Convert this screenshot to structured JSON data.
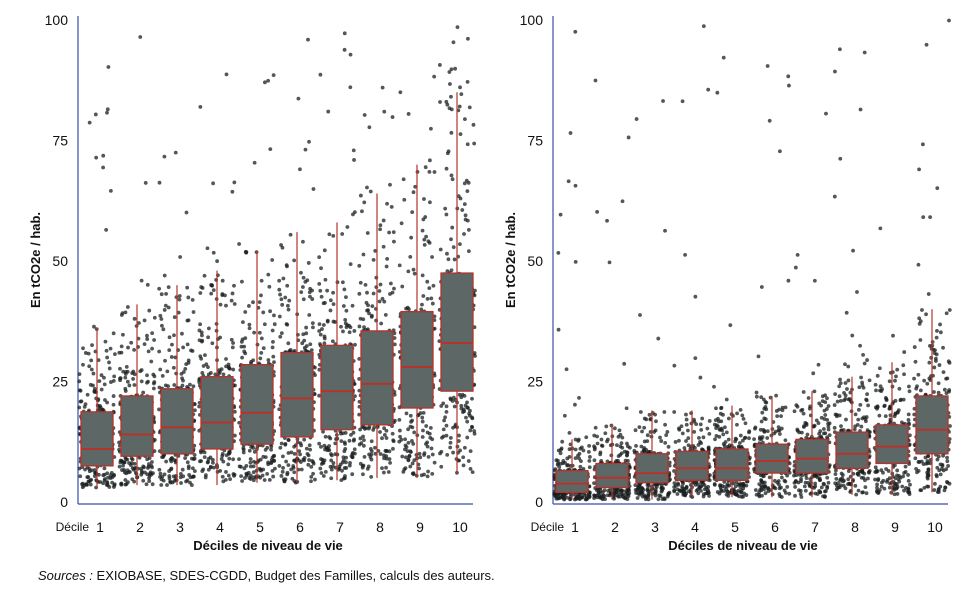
{
  "chart_data": [
    {
      "type": "box",
      "title": "",
      "xlabel": "Déciles de niveau de vie",
      "ylabel": "En tCO2e / hab.",
      "xprefix": "Décile",
      "ylim": [
        0,
        100
      ],
      "yticks": [
        0,
        25,
        50,
        75,
        100
      ],
      "categories": [
        "1",
        "2",
        "3",
        "4",
        "5",
        "6",
        "7",
        "8",
        "9",
        "10"
      ],
      "boxes": [
        {
          "lo": 3,
          "q1": 7.5,
          "med": 11,
          "q3": 18.7,
          "hi": 36
        },
        {
          "lo": 3.5,
          "q1": 9.5,
          "med": 14,
          "q3": 22,
          "hi": 41
        },
        {
          "lo": 3.5,
          "q1": 10,
          "med": 15.5,
          "q3": 23.5,
          "hi": 45
        },
        {
          "lo": 3.5,
          "q1": 11,
          "med": 16.5,
          "q3": 26,
          "hi": 48
        },
        {
          "lo": 4,
          "q1": 12,
          "med": 18.5,
          "q3": 28.5,
          "hi": 52
        },
        {
          "lo": 4,
          "q1": 13.5,
          "med": 21.5,
          "q3": 31,
          "hi": 56
        },
        {
          "lo": 4.5,
          "q1": 15,
          "med": 23,
          "q3": 32.5,
          "hi": 58
        },
        {
          "lo": 5,
          "q1": 16,
          "med": 24.5,
          "q3": 35.5,
          "hi": 64
        },
        {
          "lo": 5,
          "q1": 19.5,
          "med": 28,
          "q3": 39.5,
          "hi": 70
        },
        {
          "lo": 6,
          "q1": 23,
          "med": 33,
          "q3": 47.5,
          "hi": 85
        }
      ]
    },
    {
      "type": "box",
      "title": "",
      "xlabel": "Déciles de niveau de vie",
      "ylabel": "En tCO2e / hab.",
      "xprefix": "Décile",
      "ylim": [
        0,
        100
      ],
      "yticks": [
        0,
        25,
        50,
        75,
        100
      ],
      "categories": [
        "1",
        "2",
        "3",
        "4",
        "5",
        "6",
        "7",
        "8",
        "9",
        "10"
      ],
      "boxes": [
        {
          "lo": 0.5,
          "q1": 2,
          "med": 3.8,
          "q3": 6.5,
          "hi": 13
        },
        {
          "lo": 0.5,
          "q1": 3,
          "med": 5,
          "q3": 8,
          "hi": 16
        },
        {
          "lo": 0.5,
          "q1": 4,
          "med": 6,
          "q3": 10,
          "hi": 19
        },
        {
          "lo": 1,
          "q1": 4.5,
          "med": 7,
          "q3": 10.5,
          "hi": 19
        },
        {
          "lo": 1,
          "q1": 4.5,
          "med": 7,
          "q3": 11,
          "hi": 20
        },
        {
          "lo": 1,
          "q1": 6,
          "med": 8.5,
          "q3": 12,
          "hi": 22
        },
        {
          "lo": 1,
          "q1": 6,
          "med": 9,
          "q3": 13,
          "hi": 23
        },
        {
          "lo": 1.5,
          "q1": 7,
          "med": 10,
          "q3": 14.5,
          "hi": 26
        },
        {
          "lo": 1.5,
          "q1": 8,
          "med": 11.5,
          "q3": 16,
          "hi": 29
        },
        {
          "lo": 2,
          "q1": 10,
          "med": 15,
          "q3": 22,
          "hi": 40
        }
      ]
    }
  ],
  "source": {
    "label": "Sources :",
    "text": " EXIOBASE, SDES-CGDD, Budget des Familles, calculs des auteurs."
  },
  "colors": {
    "axis": "#3a4fa8",
    "box": "#5c6766",
    "boxline": "#b5332b",
    "point": "#1a1f1f"
  }
}
